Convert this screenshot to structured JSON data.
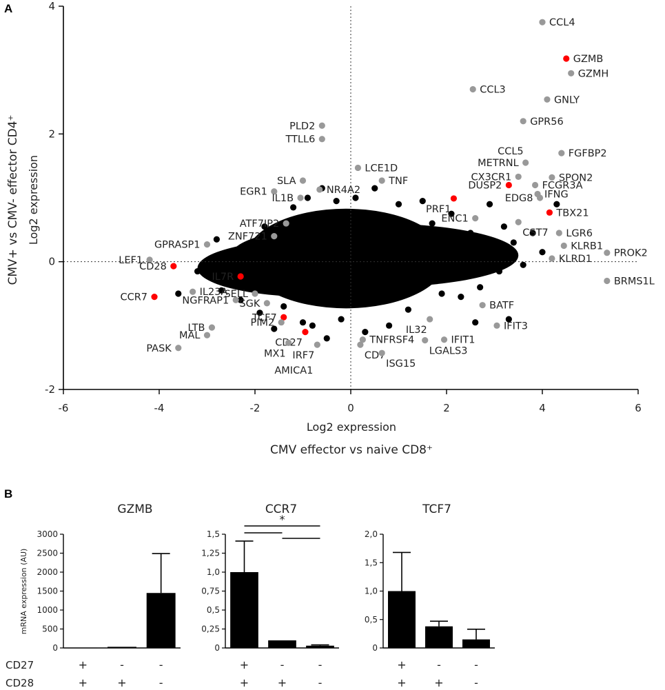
{
  "figure": {
    "panel_a_label": "A",
    "panel_b_label": "B"
  },
  "chart_data": [
    {
      "type": "scatter",
      "title": "",
      "xlabel": "Log2 expression",
      "xlabel_group": "CMV effector vs naive CD8⁺",
      "ylabel": "Log2 expression",
      "ylabel_group": "CMV+ vs CMV- effector CD4⁺",
      "xlim": [
        -6,
        6
      ],
      "ylim": [
        -2,
        4
      ],
      "xticks": [
        -6,
        -4,
        -2,
        0,
        2,
        4,
        6
      ],
      "yticks": [
        -2,
        0,
        2,
        4
      ],
      "reference_lines": {
        "x": 0,
        "y": 0
      },
      "background_cloud": {
        "description": "thousands of black points centered near (0,0)",
        "color": "#000000",
        "points": [
          [
            -3.6,
            -0.5
          ],
          [
            -3.0,
            -0.2
          ],
          [
            -2.7,
            -0.45
          ],
          [
            -2.5,
            0.1
          ],
          [
            -2.3,
            -0.6
          ],
          [
            -2.2,
            -0.35
          ],
          [
            -2.0,
            0.3
          ],
          [
            -1.9,
            -0.8
          ],
          [
            -1.8,
            0.55
          ],
          [
            -1.6,
            -1.05
          ],
          [
            -1.5,
            0.15
          ],
          [
            -1.4,
            -0.7
          ],
          [
            -1.3,
            0.45
          ],
          [
            -1.2,
            0.85
          ],
          [
            -1.0,
            -0.95
          ],
          [
            -0.9,
            1.0
          ],
          [
            -0.8,
            -1.0
          ],
          [
            -0.6,
            1.15
          ],
          [
            -0.5,
            -1.2
          ],
          [
            -0.3,
            0.95
          ],
          [
            -0.2,
            -0.9
          ],
          [
            0.1,
            1.0
          ],
          [
            0.3,
            -1.1
          ],
          [
            0.5,
            1.15
          ],
          [
            0.8,
            -1.0
          ],
          [
            1.0,
            0.9
          ],
          [
            1.2,
            -0.75
          ],
          [
            1.5,
            0.95
          ],
          [
            1.7,
            0.6
          ],
          [
            1.9,
            -0.5
          ],
          [
            2.1,
            0.75
          ],
          [
            2.3,
            -0.55
          ],
          [
            2.5,
            0.45
          ],
          [
            2.7,
            -0.4
          ],
          [
            2.9,
            0.9
          ],
          [
            3.1,
            -0.15
          ],
          [
            3.2,
            0.55
          ],
          [
            3.4,
            0.3
          ],
          [
            3.6,
            -0.05
          ],
          [
            3.8,
            0.45
          ],
          [
            4.0,
            0.15
          ],
          [
            4.3,
            0.9
          ],
          [
            3.3,
            -0.9
          ],
          [
            2.6,
            -0.95
          ],
          [
            -2.8,
            0.35
          ],
          [
            -3.2,
            -0.15
          ]
        ]
      },
      "labeled_points": [
        {
          "label": "CCL4",
          "x": 4.0,
          "y": 3.75,
          "color": "#999999",
          "side": "right"
        },
        {
          "label": "GZMB",
          "x": 4.5,
          "y": 3.18,
          "color": "#ff0000",
          "side": "right"
        },
        {
          "label": "GZMH",
          "x": 4.6,
          "y": 2.95,
          "color": "#999999",
          "side": "right"
        },
        {
          "label": "CCL3",
          "x": 2.55,
          "y": 2.7,
          "color": "#999999",
          "side": "right"
        },
        {
          "label": "GNLY",
          "x": 4.1,
          "y": 2.54,
          "color": "#999999",
          "side": "right"
        },
        {
          "label": "GPR56",
          "x": 3.6,
          "y": 2.2,
          "color": "#999999",
          "side": "right"
        },
        {
          "label": "PLD2",
          "x": -0.6,
          "y": 2.13,
          "color": "#999999",
          "side": "left"
        },
        {
          "label": "TTLL6",
          "x": -0.6,
          "y": 1.92,
          "color": "#999999",
          "side": "left"
        },
        {
          "label": "FGFBP2",
          "x": 4.4,
          "y": 1.7,
          "color": "#999999",
          "side": "right"
        },
        {
          "label": "CCL5",
          "x": 3.65,
          "y": 1.55,
          "color": "#999999",
          "side": "above-left"
        },
        {
          "label": "METRNL",
          "x": 3.65,
          "y": 1.55,
          "color": "#999999",
          "side": "left"
        },
        {
          "label": "LCE1D",
          "x": 0.15,
          "y": 1.47,
          "color": "#999999",
          "side": "right"
        },
        {
          "label": "SPON2",
          "x": 4.2,
          "y": 1.32,
          "color": "#999999",
          "side": "right"
        },
        {
          "label": "CX3CR1",
          "x": 3.5,
          "y": 1.33,
          "color": "#999999",
          "side": "left"
        },
        {
          "label": "TNF",
          "x": 0.65,
          "y": 1.27,
          "color": "#999999",
          "side": "right"
        },
        {
          "label": "SLA",
          "x": -1.0,
          "y": 1.27,
          "color": "#999999",
          "side": "left"
        },
        {
          "label": "FCGR3A",
          "x": 3.85,
          "y": 1.2,
          "color": "#999999",
          "side": "right"
        },
        {
          "label": "DUSP2",
          "x": 3.3,
          "y": 1.2,
          "color": "#ff0000",
          "side": "left"
        },
        {
          "label": "NR4A2",
          "x": -0.65,
          "y": 1.13,
          "color": "#999999",
          "side": "right"
        },
        {
          "label": "EGR1",
          "x": -1.6,
          "y": 1.1,
          "color": "#999999",
          "side": "left"
        },
        {
          "label": "IFNG",
          "x": 3.9,
          "y": 1.06,
          "color": "#999999",
          "side": "right"
        },
        {
          "label": "EDG8",
          "x": 3.95,
          "y": 1.0,
          "color": "#999999",
          "side": "left"
        },
        {
          "label": "IL1B",
          "x": -1.05,
          "y": 1.0,
          "color": "#999999",
          "side": "left"
        },
        {
          "label": "PRF1",
          "x": 2.15,
          "y": 0.99,
          "color": "#ff0000",
          "side": "below-left"
        },
        {
          "label": "TBX21",
          "x": 4.15,
          "y": 0.77,
          "color": "#ff0000",
          "side": "right"
        },
        {
          "label": "ATF7IP2",
          "x": -1.35,
          "y": 0.6,
          "color": "#999999",
          "side": "left"
        },
        {
          "label": "ENC1",
          "x": 2.6,
          "y": 0.68,
          "color": "#999999",
          "side": "left"
        },
        {
          "label": "CST7",
          "x": 3.5,
          "y": 0.62,
          "color": "#999999",
          "side": "below-right"
        },
        {
          "label": "GPRASP1",
          "x": -3.0,
          "y": 0.27,
          "color": "#999999",
          "side": "left"
        },
        {
          "label": "ZNF721",
          "x": -1.6,
          "y": 0.4,
          "color": "#999999",
          "side": "left"
        },
        {
          "label": "LGR6",
          "x": 4.35,
          "y": 0.45,
          "color": "#999999",
          "side": "right"
        },
        {
          "label": "KLRB1",
          "x": 4.45,
          "y": 0.25,
          "color": "#999999",
          "side": "right"
        },
        {
          "label": "PROK2",
          "x": 5.35,
          "y": 0.14,
          "color": "#999999",
          "side": "right"
        },
        {
          "label": "KLRD1",
          "x": 4.2,
          "y": 0.05,
          "color": "#999999",
          "side": "right"
        },
        {
          "label": "LEF1",
          "x": -4.2,
          "y": 0.03,
          "color": "#999999",
          "side": "left"
        },
        {
          "label": "CD28",
          "x": -3.7,
          "y": -0.07,
          "color": "#ff0000",
          "side": "left"
        },
        {
          "label": "BRMS1L",
          "x": 5.35,
          "y": -0.3,
          "color": "#999999",
          "side": "right"
        },
        {
          "label": "IL7R",
          "x": -2.3,
          "y": -0.23,
          "color": "#ff0000",
          "side": "left"
        },
        {
          "label": "IL23A",
          "x": -3.3,
          "y": -0.47,
          "color": "#999999",
          "side": "right"
        },
        {
          "label": "CCR7",
          "x": -4.1,
          "y": -0.55,
          "color": "#ff0000",
          "side": "left"
        },
        {
          "label": "SELL",
          "x": -2.0,
          "y": -0.5,
          "color": "#999999",
          "side": "left"
        },
        {
          "label": "NGFRAP1",
          "x": -2.4,
          "y": -0.6,
          "color": "#999999",
          "side": "left"
        },
        {
          "label": "SGK",
          "x": -1.75,
          "y": -0.65,
          "color": "#999999",
          "side": "left"
        },
        {
          "label": "BATF",
          "x": 2.75,
          "y": -0.68,
          "color": "#999999",
          "side": "right"
        },
        {
          "label": "TCF7",
          "x": -1.4,
          "y": -0.87,
          "color": "#ff0000",
          "side": "left"
        },
        {
          "label": "IL32",
          "x": 1.65,
          "y": -0.9,
          "color": "#999999",
          "side": "below-left"
        },
        {
          "label": "PIM2",
          "x": -1.45,
          "y": -0.95,
          "color": "#999999",
          "side": "left"
        },
        {
          "label": "IFIT3",
          "x": 3.05,
          "y": -1.0,
          "color": "#999999",
          "side": "right"
        },
        {
          "label": "LTB",
          "x": -2.9,
          "y": -1.03,
          "color": "#999999",
          "side": "left"
        },
        {
          "label": "CD27",
          "x": -0.95,
          "y": -1.1,
          "color": "#ff0000",
          "side": "below-left"
        },
        {
          "label": "MAL",
          "x": -3.0,
          "y": -1.15,
          "color": "#999999",
          "side": "left"
        },
        {
          "label": "TNFRSF4",
          "x": 0.25,
          "y": -1.22,
          "color": "#999999",
          "side": "right"
        },
        {
          "label": "IFIT1",
          "x": 1.95,
          "y": -1.22,
          "color": "#999999",
          "side": "right"
        },
        {
          "label": "LGALS3",
          "x": 1.55,
          "y": -1.23,
          "color": "#999999",
          "side": "below-right"
        },
        {
          "label": "MX1",
          "x": -1.3,
          "y": -1.27,
          "color": "#999999",
          "side": "below-left"
        },
        {
          "label": "IRF7",
          "x": -0.7,
          "y": -1.3,
          "color": "#999999",
          "side": "below-left"
        },
        {
          "label": "PASK",
          "x": -3.6,
          "y": -1.35,
          "color": "#999999",
          "side": "left"
        },
        {
          "label": "CD7",
          "x": 0.2,
          "y": -1.3,
          "color": "#999999",
          "side": "below-right"
        },
        {
          "label": "ISG15",
          "x": 0.65,
          "y": -1.43,
          "color": "#999999",
          "side": "below-right"
        },
        {
          "label": "AMICA1",
          "x": -0.7,
          "y": -1.3,
          "color": "#999999",
          "side": "bottom-left"
        }
      ]
    },
    {
      "type": "bar",
      "title": "GZMB",
      "ylabel": "mRNA expression (AU)",
      "ylim": [
        0,
        3000
      ],
      "yticks": [
        "0",
        "500",
        "1000",
        "1500",
        "2000",
        "2500",
        "3000"
      ],
      "ytick_values": [
        0,
        500,
        1000,
        1500,
        2000,
        2500,
        3000
      ],
      "values": [
        5,
        30,
        1450
      ],
      "errors": [
        0,
        0,
        1040
      ],
      "significance": []
    },
    {
      "type": "bar",
      "title": "CCR7",
      "ylabel": "",
      "ylim": [
        0,
        1.5
      ],
      "yticks": [
        "0",
        "0,25",
        "0,5",
        "0,75",
        "1,0",
        "1,25",
        "1,5"
      ],
      "ytick_values": [
        0,
        0.25,
        0.5,
        0.75,
        1.0,
        1.25,
        1.5
      ],
      "values": [
        1.0,
        0.1,
        0.03
      ],
      "errors": [
        0.41,
        0,
        0.01
      ],
      "significance": [
        {
          "from": 0,
          "to": 1,
          "level": 1
        },
        {
          "from": 1,
          "to": 2,
          "level": 1
        },
        {
          "from": 0,
          "to": 2,
          "level": 2,
          "label": "*"
        }
      ]
    },
    {
      "type": "bar",
      "title": "TCF7",
      "ylabel": "",
      "ylim": [
        0,
        2.0
      ],
      "yticks": [
        "0",
        "0,5",
        "1,0",
        "1,5",
        "2,0"
      ],
      "ytick_values": [
        0,
        0.5,
        1.0,
        1.5,
        2.0
      ],
      "values": [
        1.0,
        0.38,
        0.15
      ],
      "errors": [
        0.68,
        0.09,
        0.18
      ],
      "significance": []
    }
  ],
  "conditions": {
    "rows": [
      {
        "label": "CD27",
        "signs": [
          "+",
          "-",
          "-"
        ]
      },
      {
        "label": "CD28",
        "signs": [
          "+",
          "+",
          "-"
        ]
      }
    ]
  }
}
